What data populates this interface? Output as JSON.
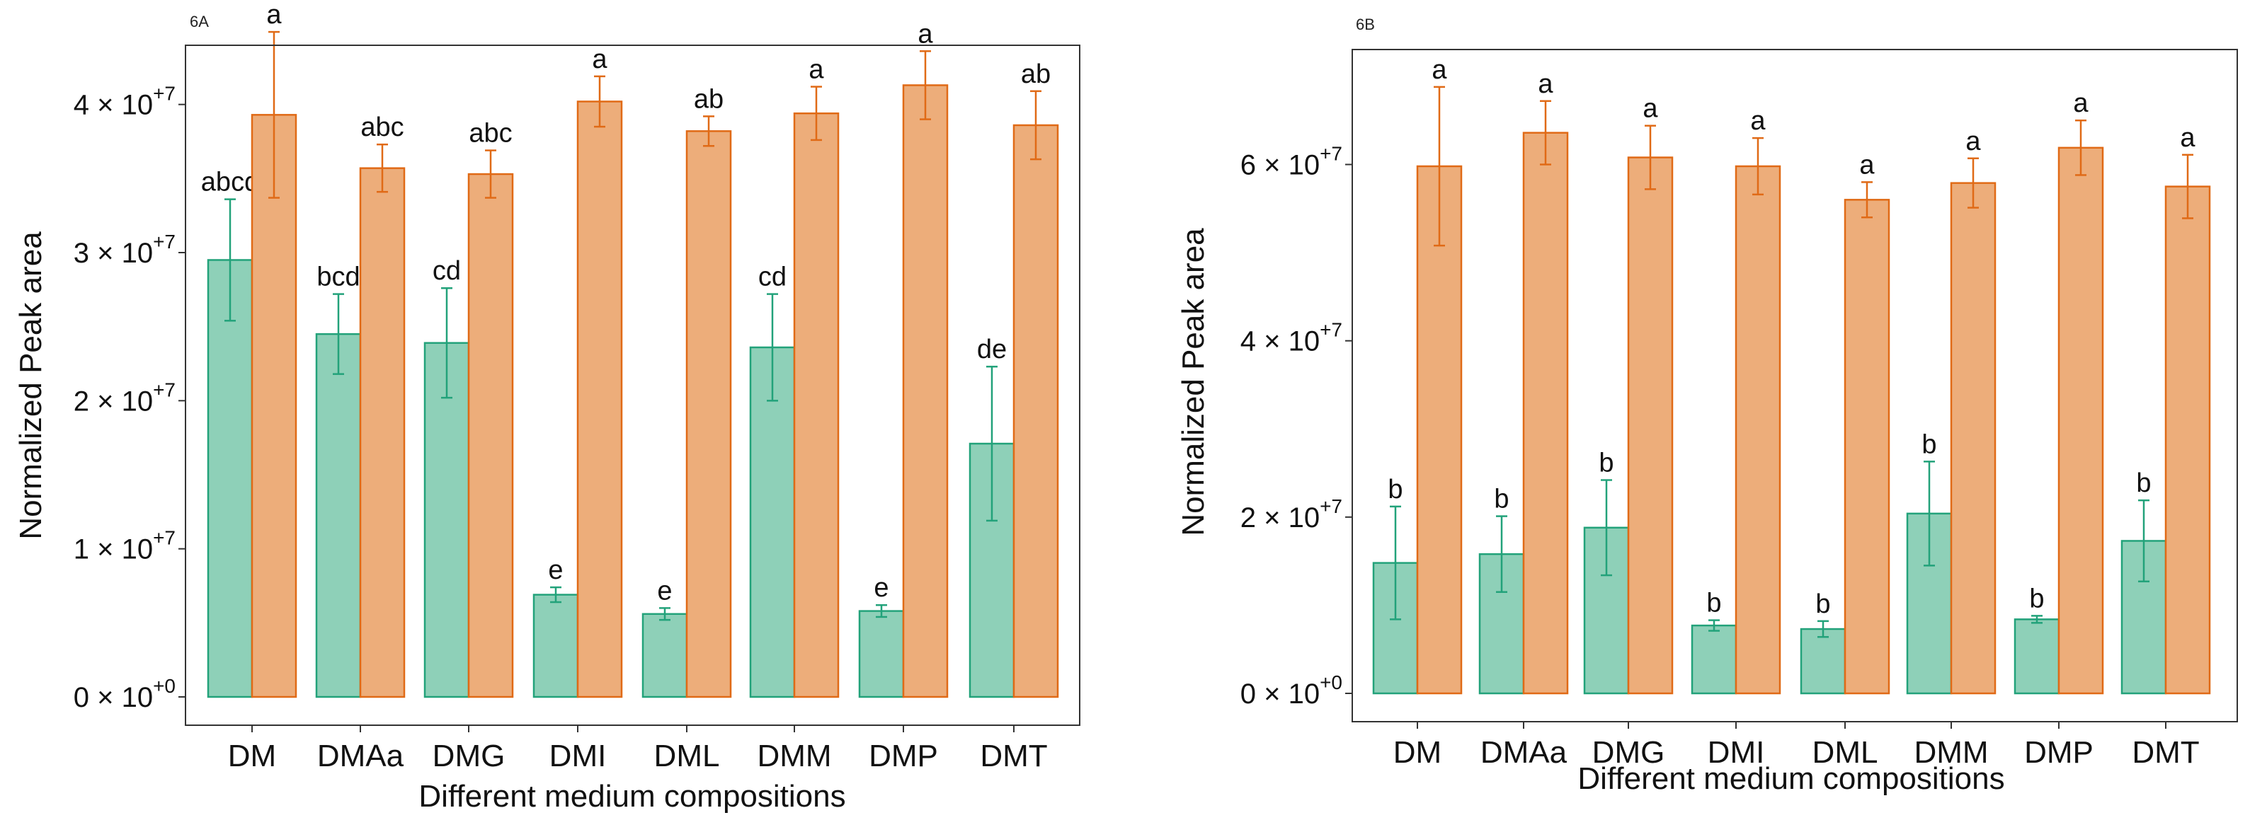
{
  "colors": {
    "green_fill": "#8ED0B8",
    "green_stroke": "#22A27A",
    "orange_fill": "#EDAD7A",
    "orange_stroke": "#E06A16",
    "axis": "#333333"
  },
  "chart_data": [
    {
      "id": "6A",
      "panel_label": "6A",
      "type": "bar",
      "xlabel": "Different medium compositions",
      "ylabel": "Normalized Peak area",
      "ylim": [
        0,
        45000000
      ],
      "y_ticks": [
        {
          "value": 0,
          "mantissa": "0",
          "exponent": "+0"
        },
        {
          "value": 10000000,
          "mantissa": "1",
          "exponent": "+7"
        },
        {
          "value": 20000000,
          "mantissa": "2",
          "exponent": "+7"
        },
        {
          "value": 30000000,
          "mantissa": "3",
          "exponent": "+7"
        },
        {
          "value": 40000000,
          "mantissa": "4",
          "exponent": "+7"
        }
      ],
      "categories": [
        "DM",
        "DMAa",
        "DMG",
        "DMI",
        "DML",
        "DMM",
        "DMP",
        "DMT"
      ],
      "series": [
        {
          "name": "green",
          "values": [
            29500000,
            24500000,
            23900000,
            6900000,
            5600000,
            23600000,
            5800000,
            17100000
          ],
          "errors": [
            4100000,
            2700000,
            3700000,
            500000,
            400000,
            3600000,
            400000,
            5200000
          ],
          "labels": [
            "abcd",
            "bcd",
            "cd",
            "e",
            "e",
            "cd",
            "e",
            "de"
          ]
        },
        {
          "name": "orange",
          "values": [
            39300000,
            35700000,
            35300000,
            40200000,
            38200000,
            39400000,
            41300000,
            38600000
          ],
          "errors": [
            5600000,
            1600000,
            1600000,
            1700000,
            1000000,
            1800000,
            2300000,
            2300000
          ],
          "labels": [
            "a",
            "abc",
            "abc",
            "a",
            "ab",
            "a",
            "a",
            "ab"
          ]
        }
      ]
    },
    {
      "id": "6B",
      "panel_label": "6B",
      "type": "bar",
      "xlabel": "Different medium compositions",
      "ylabel": "Normalized Peak area",
      "ylim": [
        0,
        72000000
      ],
      "y_ticks": [
        {
          "value": 0,
          "mantissa": "0",
          "exponent": "+0"
        },
        {
          "value": 20000000,
          "mantissa": "2",
          "exponent": "+7"
        },
        {
          "value": 40000000,
          "mantissa": "4",
          "exponent": "+7"
        },
        {
          "value": 60000000,
          "mantissa": "6",
          "exponent": "+7"
        }
      ],
      "categories": [
        "DM",
        "DMAa",
        "DMG",
        "DMI",
        "DML",
        "DMM",
        "DMP",
        "DMT"
      ],
      "series": [
        {
          "name": "green",
          "values": [
            14800000,
            15800000,
            18800000,
            7700000,
            7300000,
            20400000,
            8400000,
            17300000
          ],
          "errors": [
            6400000,
            4300000,
            5400000,
            600000,
            900000,
            5900000,
            400000,
            4600000
          ],
          "labels": [
            "b",
            "b",
            "b",
            "b",
            "b",
            "b",
            "b",
            "b"
          ]
        },
        {
          "name": "orange",
          "values": [
            59800000,
            63600000,
            60800000,
            59800000,
            56000000,
            57900000,
            61900000,
            57500000
          ],
          "errors": [
            9000000,
            3600000,
            3600000,
            3200000,
            2000000,
            2800000,
            3100000,
            3600000
          ],
          "labels": [
            "a",
            "a",
            "a",
            "a",
            "a",
            "a",
            "a",
            "a"
          ]
        }
      ]
    }
  ]
}
